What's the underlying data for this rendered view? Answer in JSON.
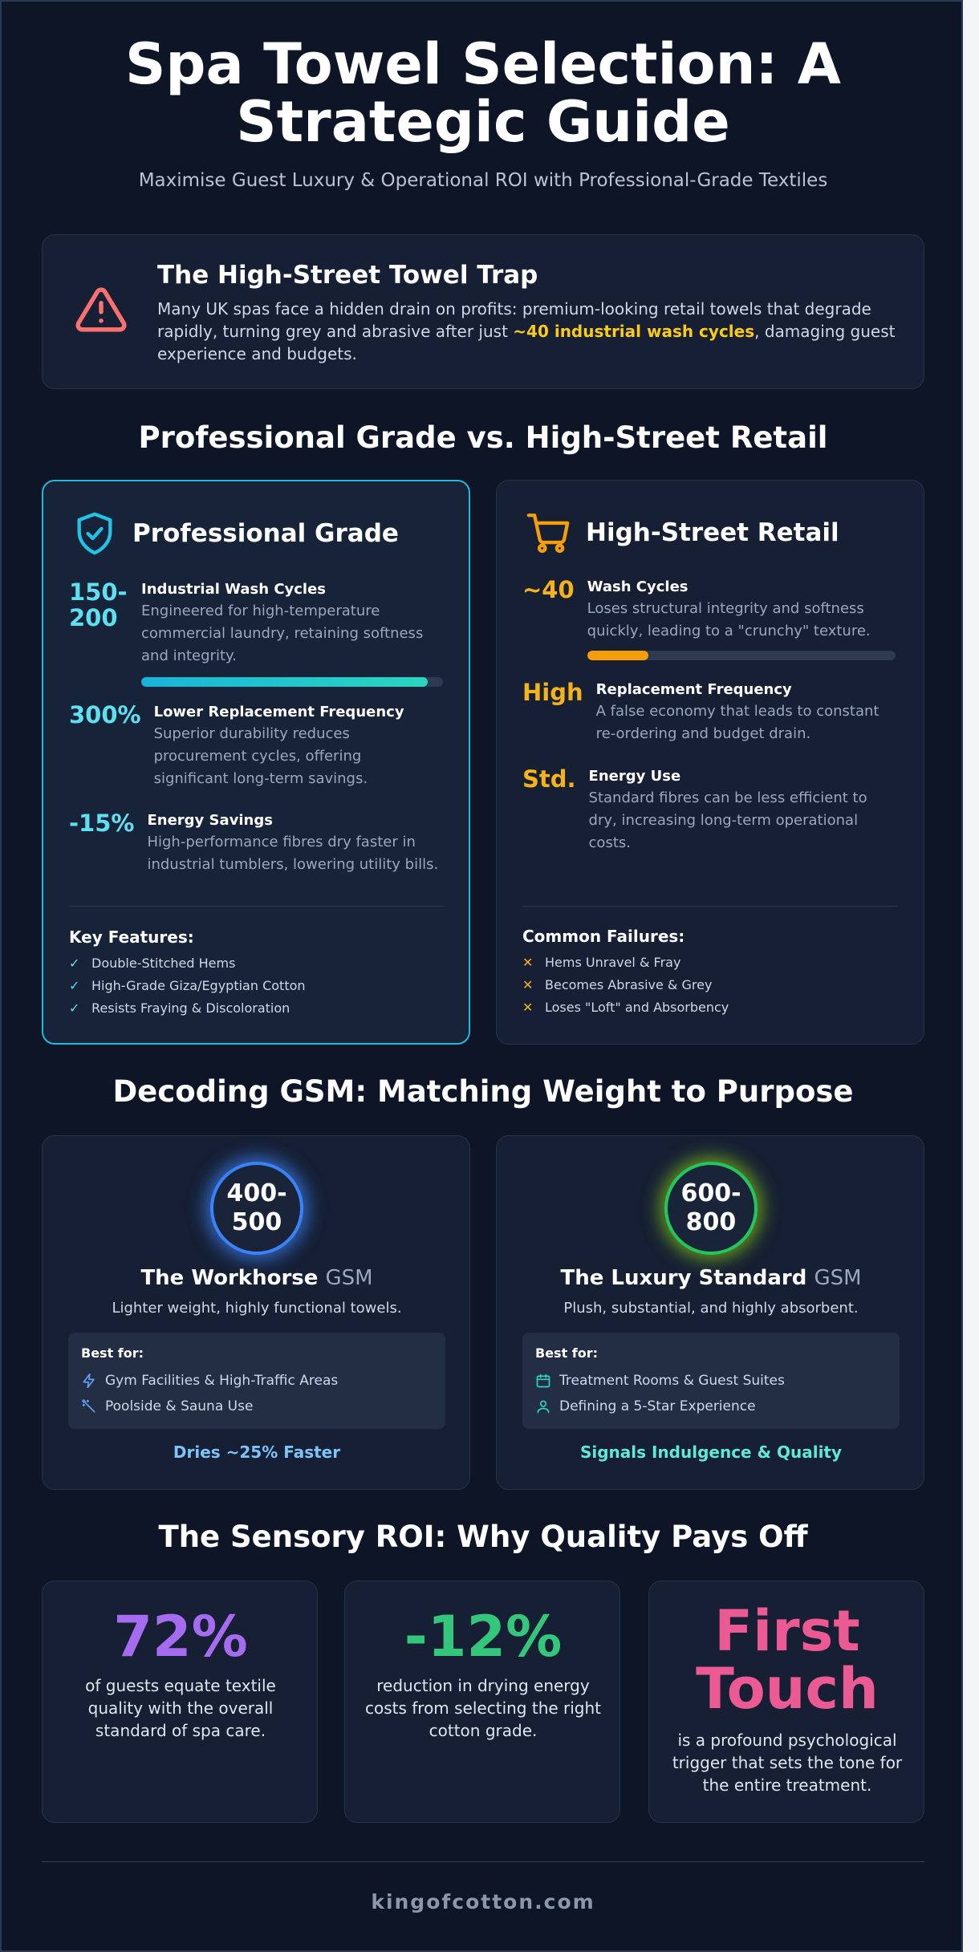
{
  "header": {
    "title": "Spa Towel Selection: A Strategic Guide",
    "subtitle": "Maximise Guest Luxury & Operational ROI with Professional-Grade Textiles"
  },
  "trap": {
    "title": "The High-Street Towel Trap",
    "body_before": "Many UK spas face a hidden drain on profits: premium-looking retail towels that degrade rapidly, turning grey and abrasive after just ",
    "highlight": "~40 industrial wash cycles",
    "body_after": ", damaging guest experience and budgets.",
    "icon": "warning-triangle-icon"
  },
  "comparison": {
    "section_title": "Professional Grade vs. High-Street Retail",
    "professional": {
      "title": "Professional Grade",
      "icon": "shield-check-icon",
      "stats": [
        {
          "value": "150-\n200",
          "label": "Industrial Wash Cycles",
          "desc": "Engineered for high-temperature commercial laundry, retaining softness and integrity.",
          "bar_percent": 95
        },
        {
          "value": "300%",
          "label": "Lower Replacement Frequency",
          "desc": "Superior durability reduces procurement cycles, offering significant long-term savings."
        },
        {
          "value": "-15%",
          "label": "Energy Savings",
          "desc": "High-performance fibres dry faster in industrial tumblers, lowering utility bills."
        }
      ],
      "features_title": "Key Features:",
      "features": [
        "Double-Stitched Hems",
        "High-Grade Giza/Egyptian Cotton",
        "Resists Fraying & Discoloration"
      ]
    },
    "retail": {
      "title": "High-Street Retail",
      "icon": "shopping-cart-icon",
      "stats": [
        {
          "value": "~40",
          "label": "Wash Cycles",
          "desc": "Loses structural integrity and softness quickly, leading to a \"crunchy\" texture.",
          "bar_percent": 20
        },
        {
          "value": "High",
          "label": "Replacement Frequency",
          "desc": "A false economy that leads to constant re-ordering and budget drain."
        },
        {
          "value": "Std.",
          "label": "Energy Use",
          "desc": "Standard fibres can be less efficient to dry, increasing long-term operational costs."
        }
      ],
      "failures_title": "Common Failures:",
      "failures": [
        "Hems Unravel & Fray",
        "Becomes Abrasive & Grey",
        "Loses \"Loft\" and Absorbency"
      ]
    }
  },
  "gsm": {
    "section_title": "Decoding GSM: Matching Weight to Purpose",
    "workhorse": {
      "range": "400-\n500",
      "name": "The Workhorse",
      "unit": "GSM",
      "desc": "Lighter weight, highly functional towels.",
      "best_for_label": "Best for:",
      "best_for": [
        {
          "icon": "lightning-icon",
          "text": "Gym Facilities & High-Traffic Areas"
        },
        {
          "icon": "wand-icon",
          "text": "Poolside & Sauna Use"
        }
      ],
      "footer": "Dries ~25% Faster",
      "accent": "#60a5fa"
    },
    "luxury": {
      "range": "600-\n800",
      "name": "The Luxury Standard",
      "unit": "GSM",
      "desc": "Plush, substantial, and highly absorbent.",
      "best_for_label": "Best for:",
      "best_for": [
        {
          "icon": "calendar-icon",
          "text": "Treatment Rooms & Guest Suites"
        },
        {
          "icon": "person-icon",
          "text": "Defining a 5-Star Experience"
        }
      ],
      "footer": "Signals Indulgence & Quality",
      "accent": "#4ade80"
    }
  },
  "roi": {
    "section_title": "The Sensory ROI: Why Quality Pays Off",
    "cards": [
      {
        "value": "72%",
        "desc": "of guests equate textile quality with the overall standard of spa care.",
        "color": "#a56cf0"
      },
      {
        "value": "-12%",
        "desc": "reduction in drying energy costs from selecting the right cotton grade.",
        "color": "#34c77b"
      },
      {
        "value": "First\nTouch",
        "desc": "is a profound psychological trigger that sets the tone for the entire treatment.",
        "color": "#ec5a93"
      }
    ]
  },
  "footer": {
    "site": "kingofcotton.com"
  }
}
